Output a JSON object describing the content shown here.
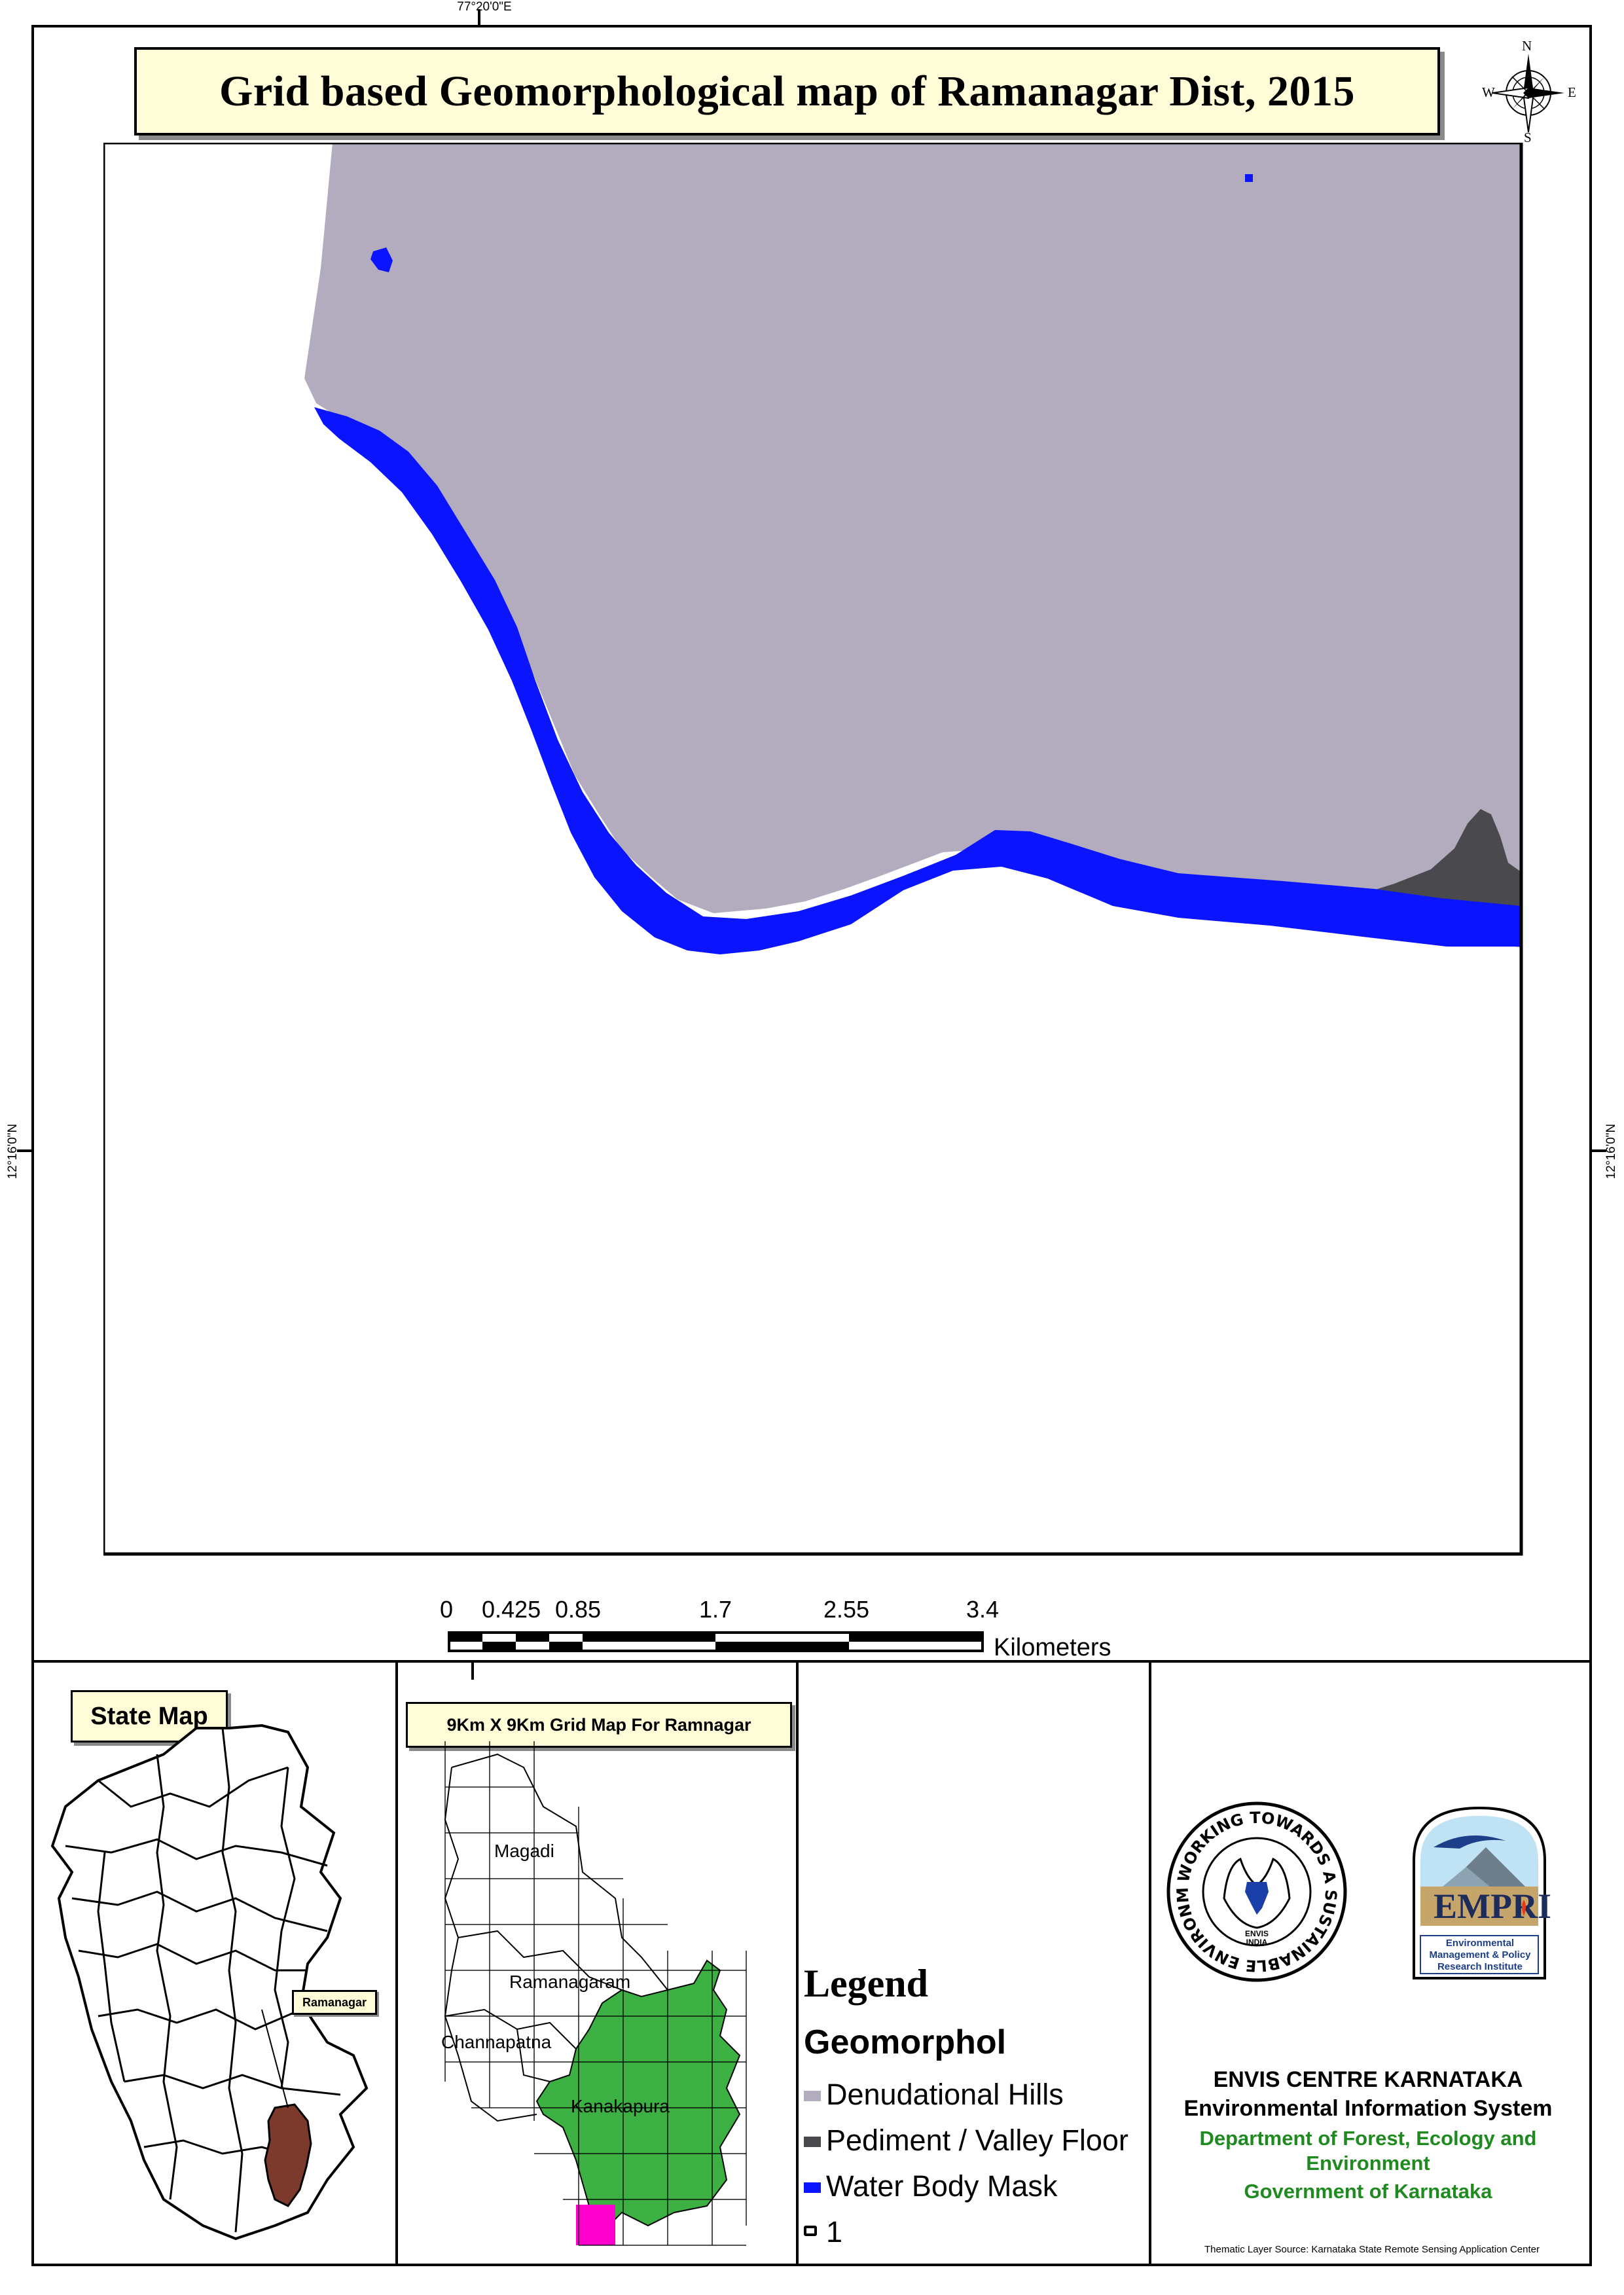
{
  "title": "Grid based Geomorphological map of Ramanagar Dist, 2015",
  "coordinates": {
    "top_longitude": "77°20'0\"E",
    "left_latitude": "12°16'0\"N",
    "right_latitude": "12°16'0\"N"
  },
  "north_arrow": {
    "n": "N",
    "s": "S",
    "e": "E",
    "w": "W"
  },
  "scale_bar": {
    "labels": [
      "0",
      "0.425",
      "0.85",
      "1.7",
      "2.55",
      "3.4"
    ],
    "unit": "Kilometers"
  },
  "state_map": {
    "label": "State Map",
    "highlight_label": "Ramanagar",
    "highlight_color": "#7b3a2c"
  },
  "grid_map": {
    "label": "9Km X 9Km Grid Map For Ramnagar",
    "towns": [
      "Magadi",
      "Ramanagaram",
      "Channapatna",
      "Kanakapura"
    ],
    "kanakapura_color": "#3cb043",
    "selected_cell_color": "#ff00cc"
  },
  "legend": {
    "title": "Legend",
    "layer": "Geomorphol",
    "items": [
      {
        "label": "Denudational Hills",
        "color": "#b3acbf"
      },
      {
        "label": "Pediment / Valley Floor",
        "color": "#4a4a4e"
      },
      {
        "label": "Water Body Mask",
        "color": "#0a14ff"
      }
    ],
    "grid_item": "1"
  },
  "logos": {
    "envis_ring_text": "WORKING TOWARDS A SUSTAINABLE ENVIRONMENT",
    "envis_center": "ENVIS INDIA",
    "emprl_name": "Environmental Management & Policy Research Institute"
  },
  "credits": {
    "line1": "ENVIS CENTRE KARNATAKA",
    "line2": "Environmental Information System",
    "line3": "Department of Forest, Ecology and Environment",
    "line4": "Government of Karnataka",
    "source": "Thematic Layer Source: Karnataka State Remote Sensing Application Center"
  },
  "colors": {
    "denudational_hills": "#b3acbf",
    "pediment_valley_floor": "#4a4a4e",
    "water_body": "#0a14ff",
    "credit_green": "#1f8a1f",
    "label_bg": "#fffdd8"
  }
}
